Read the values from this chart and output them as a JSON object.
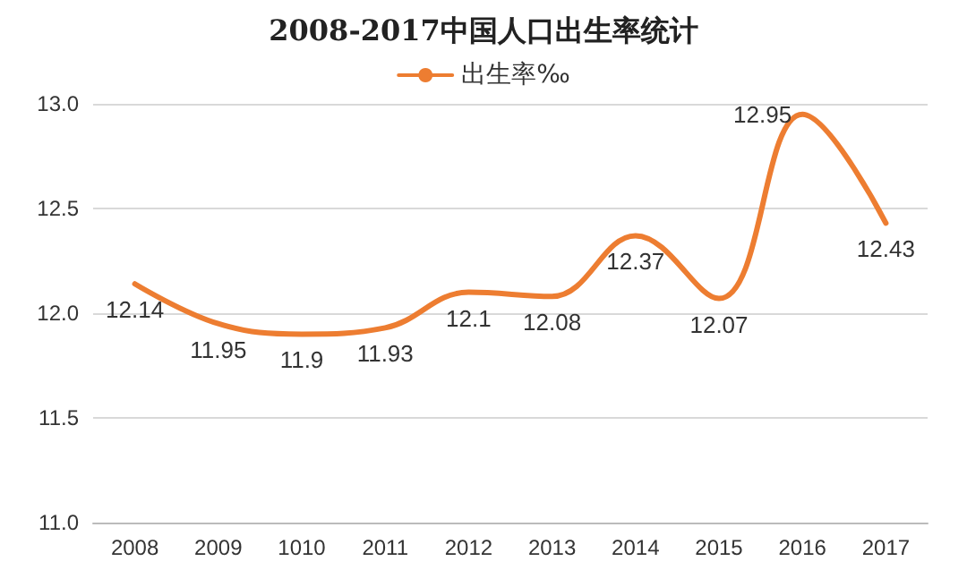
{
  "chart_data": {
    "type": "line",
    "title": "2008-2017中国人口出生率统计",
    "categories": [
      "2008",
      "2009",
      "1010",
      "2011",
      "2012",
      "2013",
      "2014",
      "2015",
      "2016",
      "2017"
    ],
    "series": [
      {
        "name": "出生率‰",
        "color": "#ed7d31",
        "values": [
          12.14,
          11.95,
          11.9,
          11.93,
          12.1,
          12.08,
          12.37,
          12.07,
          12.95,
          12.43
        ]
      }
    ],
    "ylim": [
      11,
      13
    ],
    "yticks": [
      {
        "value": 11,
        "label": "11.0"
      },
      {
        "value": 11.5,
        "label": "11.5"
      },
      {
        "value": 12,
        "label": "12.0"
      },
      {
        "value": 12.5,
        "label": "12.5"
      },
      {
        "value": 13,
        "label": "13.0"
      }
    ],
    "grid": "y",
    "legend": "top",
    "marker": "none",
    "line_style": "solid",
    "data_labels": true
  }
}
